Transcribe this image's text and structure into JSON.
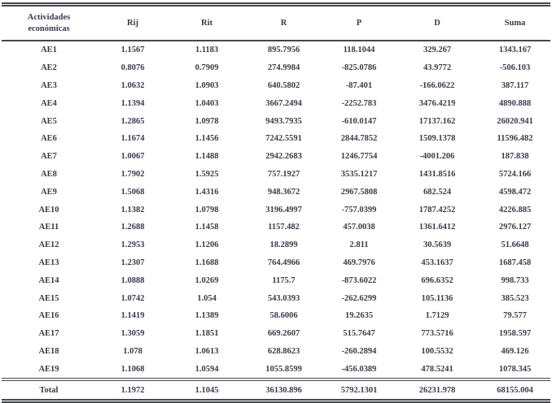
{
  "table": {
    "columns": [
      "Actividades económicas",
      "Rij",
      "Rit",
      "R",
      "P",
      "D",
      "Suma"
    ],
    "rows": [
      [
        "AE1",
        "1.1567",
        "1.1183",
        "895.7956",
        "118.1044",
        "329.267",
        "1343.167"
      ],
      [
        "AE2",
        "0.8076",
        "0.7909",
        "274.9984",
        "-825.0786",
        "43.9772",
        "-506.103"
      ],
      [
        "AE3",
        "1.0632",
        "1.0903",
        "640.5802",
        "-87.401",
        "-166.0622",
        "387.117"
      ],
      [
        "AE4",
        "1.1394",
        "1.0403",
        "3667.2494",
        "-2252.783",
        "3476.4219",
        "4890.888"
      ],
      [
        "AE5",
        "1.2865",
        "1.0978",
        "9493.7935",
        "-610.0147",
        "17137.162",
        "26020.941"
      ],
      [
        "AE6",
        "1.1674",
        "1.1456",
        "7242.5591",
        "2844.7852",
        "1509.1378",
        "11596.482"
      ],
      [
        "AE7",
        "1.0067",
        "1.1488",
        "2942.2683",
        "1246.7754",
        "-4001.206",
        "187.838"
      ],
      [
        "AE8",
        "1.7902",
        "1.5925",
        "757.1927",
        "3535.1217",
        "1431.8516",
        "5724.166"
      ],
      [
        "AE9",
        "1.5068",
        "1.4316",
        "948.3672",
        "2967.5808",
        "682.524",
        "4598.472"
      ],
      [
        "AE10",
        "1.1382",
        "1.0798",
        "3196.4997",
        "-757.0399",
        "1787.4252",
        "4226.885"
      ],
      [
        "AE11",
        "1.2688",
        "1.1458",
        "1157.482",
        "457.0038",
        "1361.6412",
        "2976.127"
      ],
      [
        "AE12",
        "1.2953",
        "1.1206",
        "18.2899",
        "2.811",
        "30.5639",
        "51.6648"
      ],
      [
        "AE13",
        "1.2307",
        "1.1688",
        "764.4966",
        "469.7976",
        "453.1637",
        "1687.458"
      ],
      [
        "AE14",
        "1.0888",
        "1.0269",
        "1175.7",
        "-873.6022",
        "696.6352",
        "998.733"
      ],
      [
        "AE15",
        "1.0742",
        "1.054",
        "543.0393",
        "-262.6299",
        "105.1136",
        "385.523"
      ],
      [
        "AE16",
        "1.1419",
        "1.1389",
        "58.6006",
        "19.2635",
        "1.7129",
        "79.577"
      ],
      [
        "AE17",
        "1.3059",
        "1.1851",
        "669.2607",
        "515.7647",
        "773.5716",
        "1958.597"
      ],
      [
        "AE18",
        "1.078",
        "1.0613",
        "628.8623",
        "-260.2894",
        "100.5532",
        "469.126"
      ],
      [
        "AE19",
        "1.1068",
        "1.0594",
        "1055.8599",
        "-456.0389",
        "478.5241",
        "1078.345"
      ]
    ],
    "total": [
      "Total",
      "1.1972",
      "1.1045",
      "36130.896",
      "5792.1301",
      "26231.978",
      "68155.004"
    ]
  },
  "colors": {
    "text": "#3b3b4d",
    "border_dark": "#45454e",
    "background": "#ffffff"
  }
}
